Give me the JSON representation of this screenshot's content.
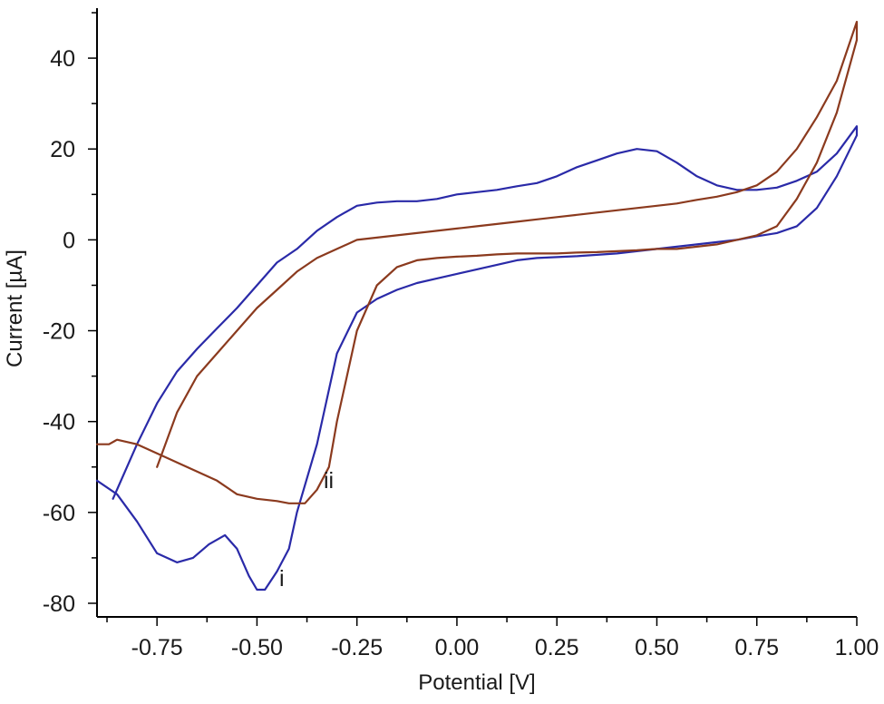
{
  "chart_data": {
    "type": "line",
    "title": "",
    "xlabel": "Potential [V]",
    "ylabel": "Current [µA]",
    "xlim": [
      -0.9,
      1.0
    ],
    "ylim": [
      -83,
      51
    ],
    "x_ticks": [
      -0.75,
      -0.5,
      -0.25,
      0.0,
      0.25,
      0.5,
      0.75,
      1.0
    ],
    "x_tick_labels": [
      "-0.75",
      "-0.50",
      "-0.25",
      "0.00",
      "0.25",
      "0.50",
      "0.75",
      "1.00"
    ],
    "y_ticks": [
      -80,
      -60,
      -40,
      -20,
      0,
      20,
      40
    ],
    "y_tick_labels": [
      "-80",
      "-60",
      "-40",
      "-20",
      "0",
      "20",
      "40"
    ],
    "grid": false,
    "legend": "none",
    "series": [
      {
        "label": "i",
        "color": "#2a2aa8",
        "x": [
          -0.86,
          -0.8,
          -0.75,
          -0.7,
          -0.65,
          -0.6,
          -0.55,
          -0.5,
          -0.45,
          -0.4,
          -0.35,
          -0.3,
          -0.25,
          -0.2,
          -0.15,
          -0.1,
          -0.05,
          0.0,
          0.05,
          0.1,
          0.15,
          0.2,
          0.25,
          0.3,
          0.35,
          0.4,
          0.45,
          0.5,
          0.55,
          0.6,
          0.65,
          0.7,
          0.75,
          0.8,
          0.85,
          0.9,
          0.95,
          1.0,
          1.0,
          0.95,
          0.9,
          0.85,
          0.8,
          0.75,
          0.7,
          0.65,
          0.6,
          0.55,
          0.5,
          0.45,
          0.4,
          0.35,
          0.3,
          0.25,
          0.2,
          0.15,
          0.1,
          0.05,
          0.0,
          -0.05,
          -0.1,
          -0.15,
          -0.2,
          -0.25,
          -0.3,
          -0.35,
          -0.4,
          -0.42,
          -0.45,
          -0.48,
          -0.5,
          -0.52,
          -0.55,
          -0.58,
          -0.62,
          -0.66,
          -0.7,
          -0.75,
          -0.8,
          -0.85,
          -0.9
        ],
        "y": [
          -57,
          -45,
          -36,
          -29,
          -24,
          -19.5,
          -15,
          -10,
          -5,
          -2,
          2,
          5,
          7.5,
          8.2,
          8.5,
          8.5,
          9,
          10,
          10.5,
          11,
          11.8,
          12.5,
          14,
          16,
          17.5,
          19,
          20,
          19.5,
          17,
          14,
          12,
          11,
          11,
          11.5,
          13,
          15,
          19,
          25,
          23,
          14,
          7,
          3,
          1.5,
          0.8,
          0,
          -0.5,
          -1,
          -1.5,
          -2,
          -2.5,
          -3,
          -3.3,
          -3.6,
          -3.8,
          -4,
          -4.5,
          -5.5,
          -6.5,
          -7.5,
          -8.5,
          -9.5,
          -11,
          -13,
          -16,
          -25,
          -45,
          -60,
          -68,
          -73,
          -77,
          -77,
          -74,
          -68,
          -65,
          -67,
          -70,
          -71,
          -69,
          -62,
          -56,
          -53
        ]
      },
      {
        "label": "ii",
        "color": "#8b3a1e",
        "x": [
          -0.75,
          -0.7,
          -0.65,
          -0.6,
          -0.55,
          -0.5,
          -0.45,
          -0.4,
          -0.35,
          -0.3,
          -0.25,
          -0.2,
          -0.15,
          -0.1,
          -0.05,
          0.0,
          0.05,
          0.1,
          0.15,
          0.2,
          0.25,
          0.3,
          0.35,
          0.4,
          0.45,
          0.5,
          0.55,
          0.6,
          0.65,
          0.7,
          0.75,
          0.8,
          0.85,
          0.9,
          0.95,
          1.0,
          1.0,
          0.95,
          0.9,
          0.85,
          0.8,
          0.75,
          0.7,
          0.65,
          0.6,
          0.55,
          0.5,
          0.45,
          0.4,
          0.35,
          0.3,
          0.25,
          0.2,
          0.15,
          0.1,
          0.05,
          0.0,
          -0.05,
          -0.1,
          -0.15,
          -0.2,
          -0.25,
          -0.3,
          -0.32,
          -0.35,
          -0.38,
          -0.42,
          -0.45,
          -0.5,
          -0.55,
          -0.6,
          -0.65,
          -0.7,
          -0.75,
          -0.8,
          -0.85,
          -0.87,
          -0.88,
          -0.9
        ],
        "y": [
          -50,
          -38,
          -30,
          -25,
          -20,
          -15,
          -11,
          -7,
          -4,
          -2,
          0,
          0.5,
          1,
          1.5,
          2,
          2.5,
          3,
          3.5,
          4,
          4.5,
          5,
          5.5,
          6,
          6.5,
          7,
          7.5,
          8,
          8.8,
          9.5,
          10.5,
          12,
          15,
          20,
          27,
          35,
          48,
          44,
          28,
          17,
          9,
          3,
          1,
          0,
          -1,
          -1.5,
          -2,
          -2,
          -2.3,
          -2.5,
          -2.7,
          -2.8,
          -3,
          -3,
          -3,
          -3.2,
          -3.5,
          -3.7,
          -4,
          -4.5,
          -6,
          -10,
          -20,
          -40,
          -50,
          -55,
          -58,
          -58,
          -57.5,
          -57,
          -56,
          -53,
          -51,
          -49,
          -47,
          -45,
          -44,
          -45,
          -45,
          -45
        ]
      }
    ],
    "annotations": [
      "i",
      "ii"
    ]
  }
}
